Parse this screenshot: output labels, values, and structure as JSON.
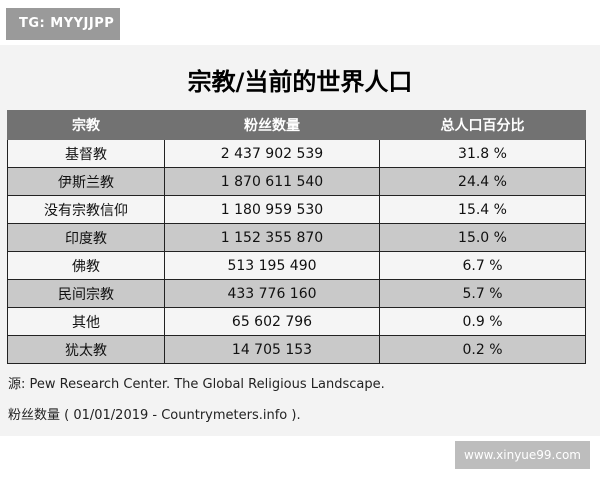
{
  "tag": "TG: MYYJJPP",
  "title": "宗教/当前的世界人口",
  "table": {
    "headers": [
      "宗教",
      "粉丝数量",
      "总人口百分比"
    ],
    "rows": [
      [
        "基督教",
        "2 437 902 539",
        "31.8 %"
      ],
      [
        "伊斯兰教",
        "1 870 611 540",
        "24.4 %"
      ],
      [
        "没有宗教信仰",
        "1 180 959 530",
        "15.4 %"
      ],
      [
        "印度教",
        "1 152 355 870",
        "15.0 %"
      ],
      [
        "佛教",
        "513 195 490",
        "6.7 %"
      ],
      [
        "民间宗教",
        "433 776 160",
        "5.7 %"
      ],
      [
        "其他",
        "65 602 796",
        "0.9 %"
      ],
      [
        "犹太教",
        "14 705 153",
        "0.2 %"
      ]
    ]
  },
  "source": "源: Pew Research Center. The Global Religious Landscape.",
  "count_note": "粉丝数量 ( 01/01/2019 - Countrymeters.info ).",
  "watermark": "www.xinyue99.com"
}
